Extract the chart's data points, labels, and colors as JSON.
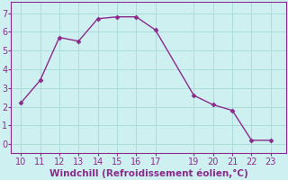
{
  "x": [
    10,
    11,
    12,
    13,
    14,
    15,
    16,
    17,
    19,
    20,
    21,
    22,
    23
  ],
  "y": [
    2.2,
    3.4,
    5.7,
    5.5,
    6.7,
    6.8,
    6.8,
    6.1,
    2.6,
    2.1,
    1.8,
    0.2,
    0.2
  ],
  "line_color": "#8B2B8B",
  "marker": "D",
  "marker_size": 2.5,
  "background_color": "#cff0f0",
  "grid_color": "#aadddd",
  "xlabel": "Windchill (Refroidissement éolien,°C)",
  "xlabel_fontsize": 7.5,
  "tick_fontsize": 7,
  "xlim": [
    9.5,
    23.8
  ],
  "ylim": [
    -0.5,
    7.6
  ],
  "xticks": [
    10,
    11,
    12,
    13,
    14,
    15,
    16,
    17,
    19,
    20,
    21,
    22,
    23
  ],
  "yticks": [
    0,
    1,
    2,
    3,
    4,
    5,
    6,
    7
  ],
  "line_width": 1.0
}
